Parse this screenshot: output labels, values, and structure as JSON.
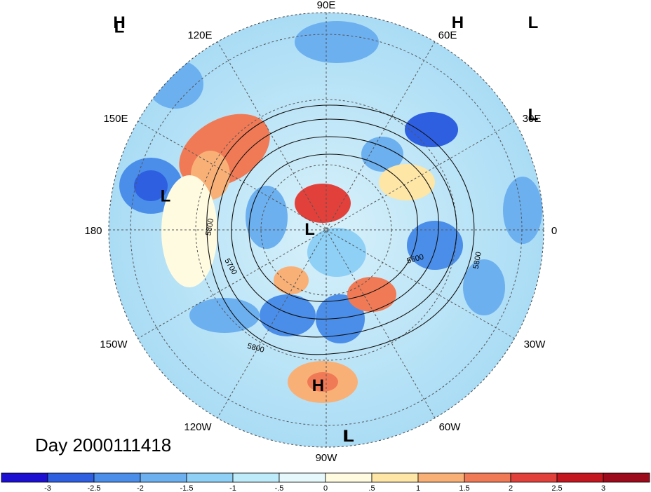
{
  "title": "Day 2000111418",
  "longitude_labels": [
    "90E",
    "60E",
    "30E",
    "0",
    "30W",
    "60W",
    "90W",
    "120W",
    "150W",
    "180",
    "150E",
    "120E"
  ],
  "pressure_systems": [
    {
      "type": "H",
      "lon": 60,
      "lat": 32
    },
    {
      "type": "L",
      "lon": 44,
      "lat": 66
    },
    {
      "type": "L",
      "lon": -2,
      "lat": -2
    },
    {
      "type": "L",
      "lon": 14,
      "lat": 58
    },
    {
      "type": "H",
      "lon": 112,
      "lat": 70
    },
    {
      "type": "H",
      "lon": 143,
      "lat": 43
    },
    {
      "type": "L",
      "lon": 168,
      "lat": 20
    },
    {
      "type": "L",
      "lon": 158,
      "lat": 66
    },
    {
      "type": "L",
      "lon": -88,
      "lat": 76
    },
    {
      "type": "L",
      "lon": -87,
      "lat": 53
    },
    {
      "type": "H",
      "lon": -93,
      "lat": 19
    }
  ],
  "contour_labels": [
    "5800",
    "5700",
    "5600",
    "5800",
    "5800"
  ],
  "colorbar": {
    "ticks": [
      "-3",
      "-2.5",
      "-2",
      "-1.5",
      "-1",
      "-.5",
      "0",
      ".5",
      "1",
      "1.5",
      "2",
      "2.5",
      "3"
    ],
    "colors": [
      "#1c0fd1",
      "#2d5fe0",
      "#4a8eea",
      "#6cb0f0",
      "#8fd0f7",
      "#bdebfa",
      "#e6f8fc",
      "#fffbe0",
      "#fde6a6",
      "#f9b076",
      "#f07a56",
      "#e2403b",
      "#c3161e",
      "#9c0a1c"
    ]
  }
}
